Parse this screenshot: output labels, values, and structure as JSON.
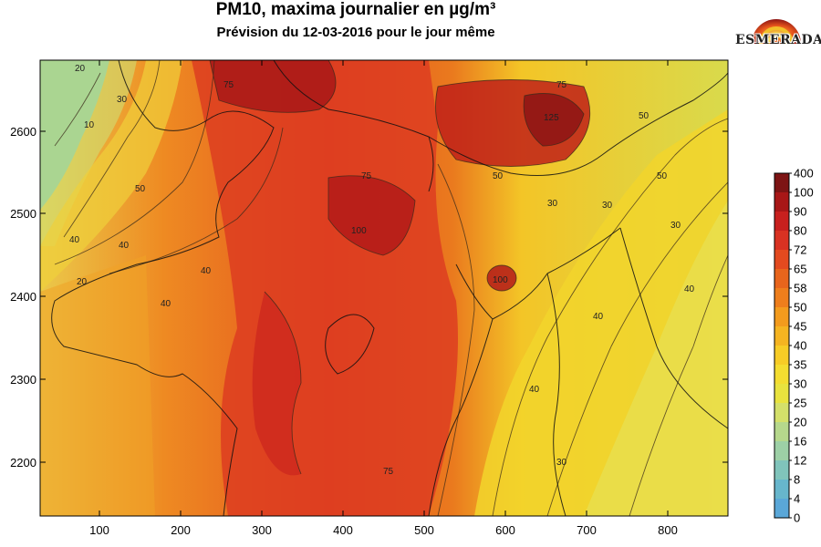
{
  "title": "PM10, maxima journalier en µg/m³",
  "subtitle": "Prévision du 12-03-2016 pour le jour même",
  "logo": {
    "text": "ESMERADA"
  },
  "map": {
    "x_ticks": [
      "100",
      "200",
      "300",
      "400",
      "500",
      "600",
      "700",
      "800"
    ],
    "y_ticks": [
      "2600",
      "2500",
      "2400",
      "2300",
      "2200"
    ],
    "contour_labels": [
      "20",
      "10",
      "30",
      "40",
      "50",
      "75",
      "100",
      "40",
      "30",
      "75",
      "50",
      "30",
      "40",
      "30",
      "40",
      "100",
      "125",
      "75",
      "50",
      "40",
      "30",
      "40",
      "20",
      "75",
      "50",
      "40"
    ]
  },
  "colorbar": {
    "labels": [
      "400",
      "100",
      "90",
      "80",
      "72",
      "65",
      "58",
      "50",
      "45",
      "40",
      "35",
      "30",
      "25",
      "20",
      "16",
      "12",
      "8",
      "4",
      "0"
    ],
    "colors": [
      "#7d1414",
      "#a81717",
      "#c8201e",
      "#d93222",
      "#e34a1f",
      "#e8651c",
      "#ee7e1c",
      "#f39b1d",
      "#f5b421",
      "#f7cc26",
      "#f4dd30",
      "#e9e33e",
      "#d4e06a",
      "#b6d88c",
      "#9dd0a6",
      "#80c4bb",
      "#67b6cc",
      "#5aa7d8",
      "#56a0dc"
    ]
  }
}
